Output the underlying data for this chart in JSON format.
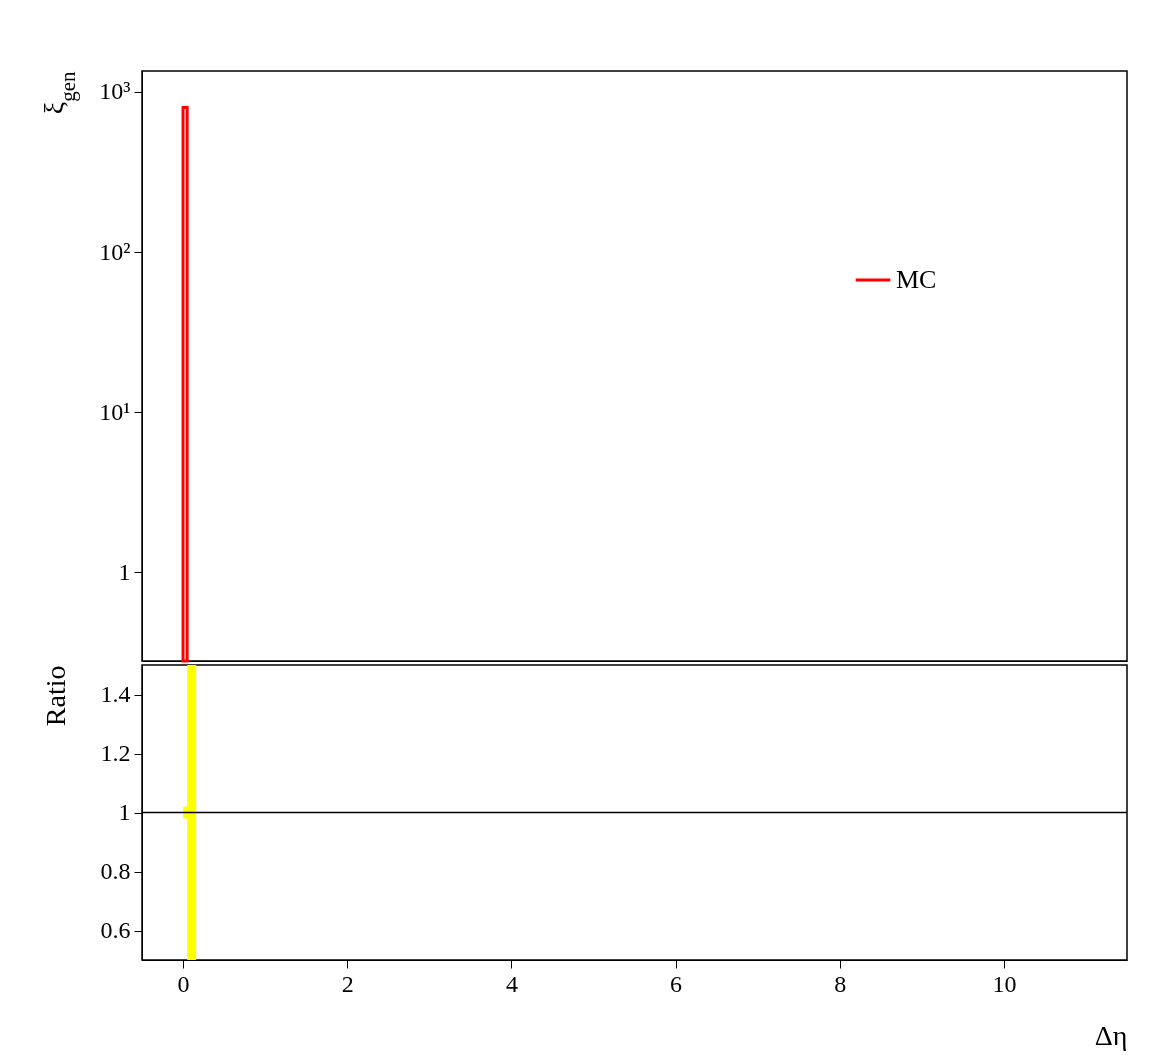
{
  "chart_data": [
    {
      "type": "histogram",
      "ylabel": "ξ$_{gen}$",
      "bins": [
        0,
        0.05
      ],
      "series": [
        {
          "name": "MC",
          "color": "#ff0000",
          "values": [
            800
          ]
        }
      ],
      "xlim": [
        -0.5,
        11.5
      ],
      "xticks": [
        0,
        2,
        4,
        6,
        8,
        10
      ],
      "ylim": [
        0.28,
        1350
      ],
      "yticks": [
        1,
        {
          "value": 10,
          "label": "10¹"
        },
        {
          "value": 100,
          "label": "10²"
        },
        {
          "value": 1000,
          "label": "10³"
        }
      ],
      "log": true,
      "legend": "top right",
      "tick_labels": "y"
    },
    {
      "type": "step",
      "xlabel": "Δη",
      "ylabel": "Ratio",
      "series": [
        {
          "color": "#ffff00",
          "x": [
            0,
            0.05,
            0.16
          ],
          "values": [
            null,
            null,
            null
          ],
          "lower": [
            0.98,
            0.5,
            0.5
          ],
          "upper": [
            1.02,
            1.5,
            1.5
          ]
        },
        {
          "color": "#000000",
          "x": [
            -0.5,
            11.5
          ],
          "values": [
            1,
            1
          ]
        }
      ],
      "xlim": [
        -0.5,
        11.5
      ],
      "xticks": [
        0,
        2,
        4,
        6,
        8,
        10
      ],
      "ylim": [
        0.5,
        1.5
      ],
      "yticks": [
        0.6,
        0.8,
        1,
        1.2,
        1.4
      ]
    }
  ]
}
